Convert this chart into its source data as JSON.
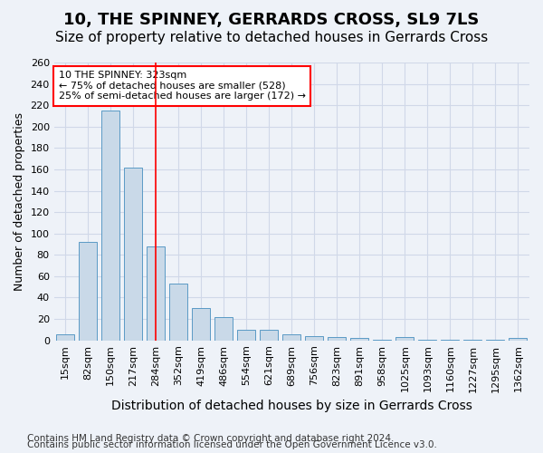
{
  "title": "10, THE SPINNEY, GERRARDS CROSS, SL9 7LS",
  "subtitle": "Size of property relative to detached houses in Gerrards Cross",
  "xlabel": "Distribution of detached houses by size in Gerrards Cross",
  "ylabel": "Number of detached properties",
  "categories": [
    "15sqm",
    "82sqm",
    "150sqm",
    "217sqm",
    "284sqm",
    "352sqm",
    "419sqm",
    "486sqm",
    "554sqm",
    "621sqm",
    "689sqm",
    "756sqm",
    "823sqm",
    "891sqm",
    "958sqm",
    "1025sqm",
    "1093sqm",
    "1160sqm",
    "1227sqm",
    "1295sqm",
    "1362sqm"
  ],
  "values": [
    6,
    92,
    215,
    162,
    88,
    53,
    30,
    22,
    10,
    10,
    6,
    4,
    3,
    2,
    1,
    3,
    1,
    1,
    1,
    1,
    2
  ],
  "bar_color": "#c9d9e8",
  "bar_edge_color": "#5a9ac5",
  "grid_color": "#d0d8e8",
  "background_color": "#eef2f8",
  "red_line_x": 4.0,
  "annotation_text": "10 THE SPINNEY: 323sqm\n← 75% of detached houses are smaller (528)\n25% of semi-detached houses are larger (172) →",
  "annotation_box_color": "white",
  "annotation_box_edge_color": "red",
  "ylim": [
    0,
    260
  ],
  "yticks": [
    0,
    20,
    40,
    60,
    80,
    100,
    120,
    140,
    160,
    180,
    200,
    220,
    240,
    260
  ],
  "footer1": "Contains HM Land Registry data © Crown copyright and database right 2024.",
  "footer2": "Contains public sector information licensed under the Open Government Licence v3.0.",
  "title_fontsize": 13,
  "subtitle_fontsize": 11,
  "xlabel_fontsize": 10,
  "ylabel_fontsize": 9,
  "tick_fontsize": 8,
  "annotation_fontsize": 8,
  "footer_fontsize": 7.5
}
